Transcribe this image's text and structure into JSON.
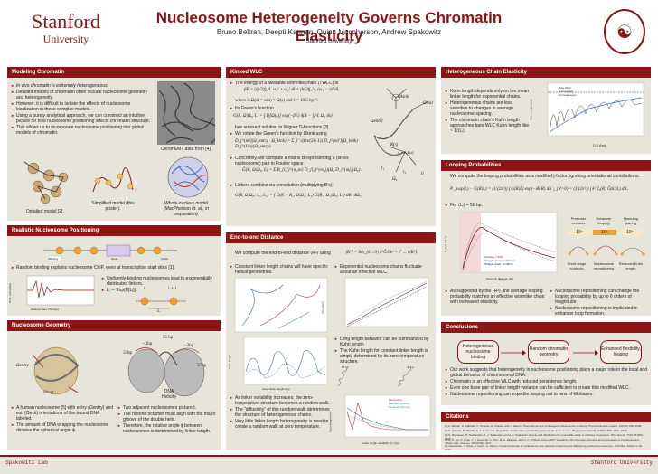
{
  "header": {
    "logo_line1": "Stanford",
    "logo_line2": "University",
    "title": "Nucleosome Heterogeneity Governs Chromatin Elasticity",
    "authors": "Bruno Beltran, Deepti Kannan, Quinn Macpherson, Andrew Spakowitz",
    "affiliation": "Stanford University"
  },
  "sections": {
    "modeling": {
      "title": "Modeling Chromatin",
      "bullets": [
        "In vivo chromatin is extremely heterogeneous.",
        "Detailed models of chromatin often include nucleosome geometry and heterogeneity.",
        "However, it is difficult to isolate the effects of nucleosome localization in these complex models.",
        "Using a purely analytical approach, we can construct an intuitive picture for how nucleosome positioning affects chromatin structure.",
        "This allows us to incorporate nucleosome positioning into global models of chromatin."
      ],
      "cap_chromemt": "ChromEMT data from [4].",
      "cap_detailed": "Detailed model [2].",
      "cap_simplified": "Simplified model (this poster).",
      "cap_whole": "Whole-nucleus model (MacPherson et. al., in preparation)."
    },
    "positioning": {
      "title": "Realistic Nucleosome Positioning",
      "bullet1": "Random binding explains nucleosome ChIP, even at transcription start sites [1].",
      "bullet2": "Uniformly-binding nucleosomes lead to exponentially distributed linkers.",
      "bullet3": "Lᵢ ∼ Exp(E[Lᵢ]).",
      "axis_x": "distance from TSS (bp)",
      "axis_y": "Prob. (occupied)",
      "label_i": "i",
      "label_i1": "i + 1",
      "label_L": "L",
      "gene_labels": [
        "Binding",
        "Gene",
        "Linker"
      ]
    },
    "geometry": {
      "title": "Nucleosome Geometry",
      "b1": "A human nucleosome [5] with entry (Ωentry) and exit (Ωexit) orientations of the bound DNA labeled.",
      "b2": "The amount of DNA wrapping the nucleosome dictates the spherical angle ϕ.",
      "b3": "Two adjacent nucleosomes pictured.",
      "b4": "The histone octamer must align with the major groove of the double helix.",
      "b5": "Therefore, the relative angle ϕ between nucleosomes is determined by linker length.",
      "lbl_entry": "Ωentry",
      "lbl_exit": "Ωexit",
      "lbl_35a": "35 bp",
      "lbl_2bp_a": "~2bp",
      "lbl_2bp_b": "~2bp",
      "lbl_33": "33bp",
      "lbl_37": "37bp",
      "lbl_dna": "DNA Helicity"
    },
    "kinked": {
      "title": "Kinked WLC",
      "b1": "The energy of a twistable wormlike chain (TWLC) is",
      "eq1": "βE = (lp/2)∫₀^L ω₁² + ω₂² dl + (lt/2)∫₀^L (ω₃ − τ)² dl,",
      "eq1b": "where ∂ₛΩ(s) = ω(s) × Ω(s) and τ = 10.5 bp⁻¹.",
      "b2": "Its Green's function",
      "eq2": "G(R, Ω|Ω₀, L) = ∫ D[Ω(s)] exp(−βE) δ(R − ∫₀^L Ω₃ ds)",
      "eq2b": "has an exact solution in Wigner D-functions [3].",
      "b3": "We rotate the Green's function by Ωkink using",
      "eq3": "D_j^{ml}(Ω_entry · Ω_kink) = Σ_l' √(8π/(2l+1)) D_j^{ml'}(Ω_kink) D_j^{l'm}(Ω_entry).",
      "b4": "Concretely, we compute a matrix B representing a (linker, nucleosome) pair in Fourier space",
      "eq4": "Ĝ(K, Ω|Ω₀, L) = Σ B_{l₀l}^{m₀m} D_{l₀}^{m₀j}(Ω) D_l^{mj}(Ω₀).",
      "b5": "Linkers combine via convolution (multiplying B's):",
      "eq5": "G(R, Ω|Ω₀; L₁, L₂) = ∫ G(R − R₁, Ω|Ω₁; L₂) G(R₁, Ω₁|Ω₀; L₁) dR₁ dΩ₁.",
      "lbl_kink": "Ωkink",
      "lbl_exit": "Ωexit",
      "lbl_entry": "Ωentry",
      "lbl_R": "R(s)",
      "lbl_t3": "t₃ = ∂ₛR(s)",
      "lbl_t1": "t₁",
      "lbl_t2": "t₂",
      "lbl_O": "0",
      "lbl_omega0": "Ω₀"
    },
    "endtoend": {
      "title": "End-to-end Distance",
      "intro": "We compute the end-to-end distance ⟨R²⟩ using",
      "intro_eq": "⟨R²⟩ = lim_{k→0} ∂²Ĝ/∂k² = iᵀ ... r⟨R²⟩.",
      "b1": "Constant linker length chains will have specific helical geometries.",
      "b2": "Exponential nucleosome chains fluctuate about an effective WLC.",
      "b3": "Long length behavior can be summarized by Kuhn length",
      "b4": "The Kuhn length for constant linker length is simply determined by its zero-temperature structure.",
      "b5": "As linker variability increases, the zero-temperature structure becomes a random walk.",
      "b6": "The \"diffusivity\" of this random walk determines the structure of heterogeneous chains.",
      "b7": "Very little linker length heterogeneity is need to create a random walk at zero temperature.",
      "plot1_ylabel": "⟨R²⟩ (nm²)",
      "plot2_ylabel": "Kuhn length",
      "plot2_xlabel": "Fixed linker length (bp)",
      "plot3_ylabel": "Kuhn length (nm)",
      "plot3_xlabel": "Linker length variability ⟨σ⟩ (bp)",
      "plot3_legend": [
        "Fluctuating",
        "Zero-temperature",
        "Moderate Entropy"
      ],
      "plot_labels": [
        "10 bp",
        "40 bp"
      ]
    },
    "hetero": {
      "title": "Heterogeneous Chain Elasticity",
      "bullets": [
        "Kuhn length depends only on the mean linker length for exponential chains.",
        "Heterogeneous chains are less sensitive to changes in average nucleosome spacing.",
        "The chromatin chain's Kuhn length approaches bare WLC Kuhn length like ~ 1/⟨Lᵢ⟩."
      ],
      "ylabel": "Kuhn length (nm)",
      "xlabel": "⟨Lᵢ⟩ (bp)",
      "legend": [
        "Bare WLC",
        "Exponential",
        "Homogeneous"
      ]
    },
    "looping": {
      "title": "Looping Probabilities",
      "intro": "We compute the looping probabilities as a modified j-factor, ignoring orientational contributions:",
      "eq": "P_loop(L) − G(R|L) = (1/(2π²)) ∫ G(R|L) exp(−iK·R) dK |_{R=0} = (1/(2π²)) ∫ k² J₀(R) Ĝ(k; L) dK.",
      "for_L": "For ⟨Lᵢ⟩ = 56 bp:",
      "b1": "As suggested by the ⟨R²⟩, the average looping probability matches an effective wormlike chain with increased elasticity.",
      "b2": "Nucleosome repositioning can change the looping probability by up to 6 orders of magnitude.",
      "b3": "Nucleosome repositioning is implicated in enhancer loop formation.",
      "ylabel": "P_loop (bp⁻¹)",
      "xlabel": "Genomic distance (bp)",
      "legend": [
        "Average = 56%",
        "Straight chain: ℓₖ=80.5nm",
        "Straight chain: ℓₖ=38nm"
      ],
      "promoter_labels": [
        "Promoter contacts",
        "Enhancer looping",
        "Homolog pairing"
      ],
      "cell_vals": [
        "10⁶",
        "10⁶",
        "10⁸"
      ],
      "outcome_labels": [
        "Short range contacts",
        "Nucleosome repositioning",
        "Reduced Kuhn length"
      ]
    },
    "conclusions": {
      "title": "Conclusions",
      "node1": "Heterogeneous nucleosome binding",
      "node2": "Random chromatin geometry",
      "node3": "Enhanced flexibility, looping",
      "bullets": [
        "Our work suggests that heterogeneity in nucleosome positioning plays a major role in the local and global behavior of chromosomal DNA.",
        "Chromatin is an effective WLC with reduced persistence length.",
        "Even one base pair of linker length variance can be sufficient to create this modified WLC.",
        "Nucleosome repositioning can expedite looping out to tens of kilobases."
      ]
    },
    "citations": {
      "title": "Citations",
      "refs": [
        "[1] A. Beltran, D. Rabbani, F. Thomas, H. Kraude, and J. Jaksch. Thermodynamics of Histogenic Nucleosome Ordering. Physical Review Letters, 100(19):198, 2008.",
        "[2] D. Kannan, B. Beltran, A. J. Spakowitz. Regulation of chromatin and binding polymer via nucleosomes, Biophysical Journal, 115(8):1509–1521, 2018.",
        "[3] S. Mehraeen, B. Sudhanshu, A. J. Spakowitz, and A. J. Spakowitz. End-to-end distribution for a wormlike chain in arbitrary dimensions, Phys Rev E, 77(6):061803, 2008.",
        "[4] H. D. Ou, S. Phan, T. J. Deerinck, A. Thor, M. H. Ellisman, and C. C. O'Shea. ChromEMT: Visualizing 3D chromatin structure and compaction in interphase and mitotic cells, Science, 357(6349), 2017.",
        "[5] Vasudevan, T. Chua, H. and C. A. Davey. Crystal structures of nucleosome core particles containing the 601 strong positioning sequence, J Mol Biol, 403(1):1–10, 2010."
      ]
    }
  },
  "footer": {
    "left": "Spakowitz Lab",
    "right": "Stanford University"
  },
  "colors": {
    "cardinal": "#8c1515",
    "panel_bg": "#e7e4da",
    "accent_orange": "#f0a030",
    "accent_blue": "#3a6fb5"
  }
}
